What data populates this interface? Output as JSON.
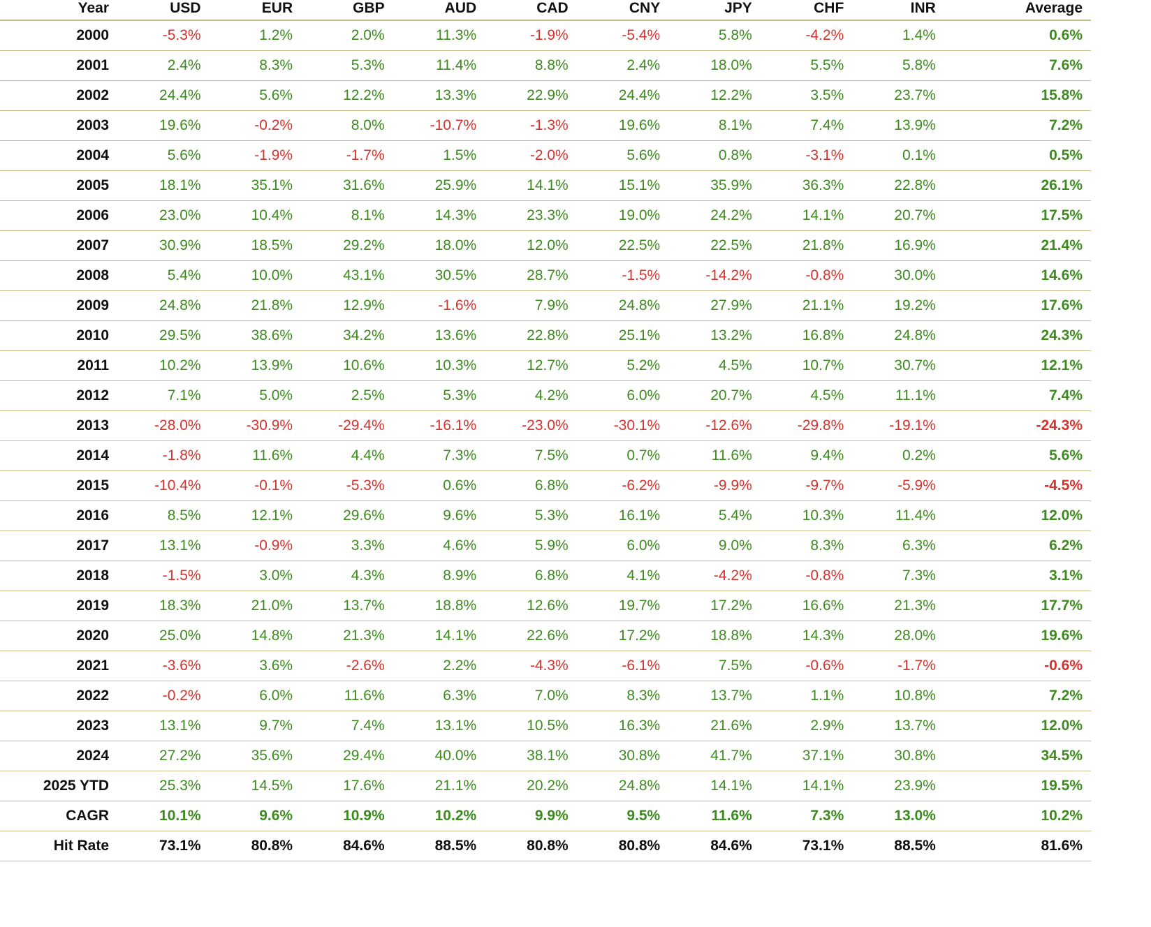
{
  "table": {
    "headers": [
      "Year",
      "USD",
      "EUR",
      "GBP",
      "AUD",
      "CAD",
      "CNY",
      "JPY",
      "CHF",
      "INR",
      "Average"
    ],
    "rows": [
      {
        "year": "2000",
        "values": [
          "-5.3%",
          "1.2%",
          "2.0%",
          "11.3%",
          "-1.9%",
          "-5.4%",
          "5.8%",
          "-4.2%",
          "1.4%"
        ],
        "average": "0.6%"
      },
      {
        "year": "2001",
        "values": [
          "2.4%",
          "8.3%",
          "5.3%",
          "11.4%",
          "8.8%",
          "2.4%",
          "18.0%",
          "5.5%",
          "5.8%"
        ],
        "average": "7.6%"
      },
      {
        "year": "2002",
        "values": [
          "24.4%",
          "5.6%",
          "12.2%",
          "13.3%",
          "22.9%",
          "24.4%",
          "12.2%",
          "3.5%",
          "23.7%"
        ],
        "average": "15.8%"
      },
      {
        "year": "2003",
        "values": [
          "19.6%",
          "-0.2%",
          "8.0%",
          "-10.7%",
          "-1.3%",
          "19.6%",
          "8.1%",
          "7.4%",
          "13.9%"
        ],
        "average": "7.2%"
      },
      {
        "year": "2004",
        "values": [
          "5.6%",
          "-1.9%",
          "-1.7%",
          "1.5%",
          "-2.0%",
          "5.6%",
          "0.8%",
          "-3.1%",
          "0.1%"
        ],
        "average": "0.5%"
      },
      {
        "year": "2005",
        "values": [
          "18.1%",
          "35.1%",
          "31.6%",
          "25.9%",
          "14.1%",
          "15.1%",
          "35.9%",
          "36.3%",
          "22.8%"
        ],
        "average": "26.1%"
      },
      {
        "year": "2006",
        "values": [
          "23.0%",
          "10.4%",
          "8.1%",
          "14.3%",
          "23.3%",
          "19.0%",
          "24.2%",
          "14.1%",
          "20.7%"
        ],
        "average": "17.5%"
      },
      {
        "year": "2007",
        "values": [
          "30.9%",
          "18.5%",
          "29.2%",
          "18.0%",
          "12.0%",
          "22.5%",
          "22.5%",
          "21.8%",
          "16.9%"
        ],
        "average": "21.4%"
      },
      {
        "year": "2008",
        "values": [
          "5.4%",
          "10.0%",
          "43.1%",
          "30.5%",
          "28.7%",
          "-1.5%",
          "-14.2%",
          "-0.8%",
          "30.0%"
        ],
        "average": "14.6%"
      },
      {
        "year": "2009",
        "values": [
          "24.8%",
          "21.8%",
          "12.9%",
          "-1.6%",
          "7.9%",
          "24.8%",
          "27.9%",
          "21.1%",
          "19.2%"
        ],
        "average": "17.6%"
      },
      {
        "year": "2010",
        "values": [
          "29.5%",
          "38.6%",
          "34.2%",
          "13.6%",
          "22.8%",
          "25.1%",
          "13.2%",
          "16.8%",
          "24.8%"
        ],
        "average": "24.3%"
      },
      {
        "year": "2011",
        "values": [
          "10.2%",
          "13.9%",
          "10.6%",
          "10.3%",
          "12.7%",
          "5.2%",
          "4.5%",
          "10.7%",
          "30.7%"
        ],
        "average": "12.1%"
      },
      {
        "year": "2012",
        "values": [
          "7.1%",
          "5.0%",
          "2.5%",
          "5.3%",
          "4.2%",
          "6.0%",
          "20.7%",
          "4.5%",
          "11.1%"
        ],
        "average": "7.4%"
      },
      {
        "year": "2013",
        "values": [
          "-28.0%",
          "-30.9%",
          "-29.4%",
          "-16.1%",
          "-23.0%",
          "-30.1%",
          "-12.6%",
          "-29.8%",
          "-19.1%"
        ],
        "average": "-24.3%"
      },
      {
        "year": "2014",
        "values": [
          "-1.8%",
          "11.6%",
          "4.4%",
          "7.3%",
          "7.5%",
          "0.7%",
          "11.6%",
          "9.4%",
          "0.2%"
        ],
        "average": "5.6%"
      },
      {
        "year": "2015",
        "values": [
          "-10.4%",
          "-0.1%",
          "-5.3%",
          "0.6%",
          "6.8%",
          "-6.2%",
          "-9.9%",
          "-9.7%",
          "-5.9%"
        ],
        "average": "-4.5%"
      },
      {
        "year": "2016",
        "values": [
          "8.5%",
          "12.1%",
          "29.6%",
          "9.6%",
          "5.3%",
          "16.1%",
          "5.4%",
          "10.3%",
          "11.4%"
        ],
        "average": "12.0%"
      },
      {
        "year": "2017",
        "values": [
          "13.1%",
          "-0.9%",
          "3.3%",
          "4.6%",
          "5.9%",
          "6.0%",
          "9.0%",
          "8.3%",
          "6.3%"
        ],
        "average": "6.2%"
      },
      {
        "year": "2018",
        "values": [
          "-1.5%",
          "3.0%",
          "4.3%",
          "8.9%",
          "6.8%",
          "4.1%",
          "-4.2%",
          "-0.8%",
          "7.3%"
        ],
        "average": "3.1%"
      },
      {
        "year": "2019",
        "values": [
          "18.3%",
          "21.0%",
          "13.7%",
          "18.8%",
          "12.6%",
          "19.7%",
          "17.2%",
          "16.6%",
          "21.3%"
        ],
        "average": "17.7%"
      },
      {
        "year": "2020",
        "values": [
          "25.0%",
          "14.8%",
          "21.3%",
          "14.1%",
          "22.6%",
          "17.2%",
          "18.8%",
          "14.3%",
          "28.0%"
        ],
        "average": "19.6%"
      },
      {
        "year": "2021",
        "values": [
          "-3.6%",
          "3.6%",
          "-2.6%",
          "2.2%",
          "-4.3%",
          "-6.1%",
          "7.5%",
          "-0.6%",
          "-1.7%"
        ],
        "average": "-0.6%"
      },
      {
        "year": "2022",
        "values": [
          "-0.2%",
          "6.0%",
          "11.6%",
          "6.3%",
          "7.0%",
          "8.3%",
          "13.7%",
          "1.1%",
          "10.8%"
        ],
        "average": "7.2%"
      },
      {
        "year": "2023",
        "values": [
          "13.1%",
          "9.7%",
          "7.4%",
          "13.1%",
          "10.5%",
          "16.3%",
          "21.6%",
          "2.9%",
          "13.7%"
        ],
        "average": "12.0%"
      },
      {
        "year": "2024",
        "values": [
          "27.2%",
          "35.6%",
          "29.4%",
          "40.0%",
          "38.1%",
          "30.8%",
          "41.7%",
          "37.1%",
          "30.8%"
        ],
        "average": "34.5%"
      },
      {
        "year": "2025 YTD",
        "values": [
          "25.3%",
          "14.5%",
          "17.6%",
          "21.1%",
          "20.2%",
          "24.8%",
          "14.1%",
          "14.1%",
          "23.9%"
        ],
        "average": "19.5%"
      }
    ],
    "cagr": {
      "label": "CAGR",
      "values": [
        "10.1%",
        "9.6%",
        "10.9%",
        "10.2%",
        "9.9%",
        "9.5%",
        "11.6%",
        "7.3%",
        "13.0%"
      ],
      "average": "10.2%"
    },
    "hit_rate": {
      "label": "Hit Rate",
      "values": [
        "73.1%",
        "80.8%",
        "84.6%",
        "88.5%",
        "80.8%",
        "80.8%",
        "84.6%",
        "73.1%",
        "88.5%"
      ],
      "average": "81.6%"
    }
  },
  "colors": {
    "positive": "#3d8a1f",
    "negative": "#d6322d",
    "rule": "#c9bb8a",
    "text": "#111111"
  }
}
